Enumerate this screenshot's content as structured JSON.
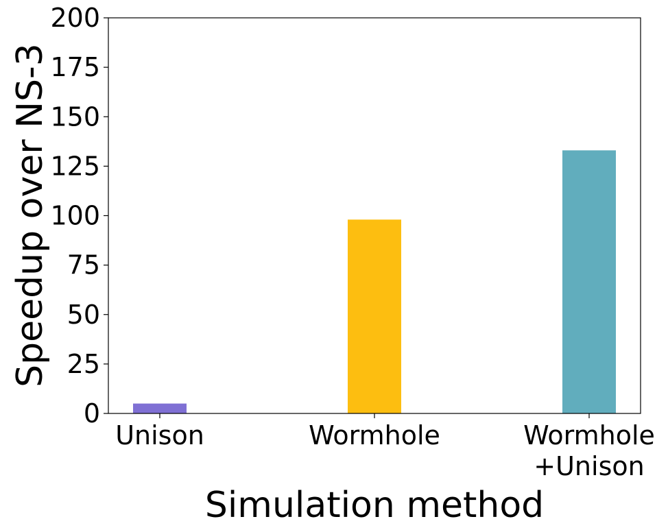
{
  "chart_data": {
    "type": "bar",
    "categories": [
      [
        "Unison"
      ],
      [
        "Wormhole"
      ],
      [
        "Wormhole",
        "+Unison"
      ]
    ],
    "values": [
      5,
      98,
      133
    ],
    "colors": [
      "#7f70d4",
      "#fdbe10",
      "#61adbd"
    ],
    "xlabel": "Simulation method",
    "ylabel": "Speedup over NS-3",
    "ylim": [
      0,
      200
    ],
    "yticks": [
      "0",
      "25",
      "50",
      "75",
      "100",
      "125",
      "150",
      "175",
      "200"
    ],
    "grid": false,
    "legend": "none"
  }
}
